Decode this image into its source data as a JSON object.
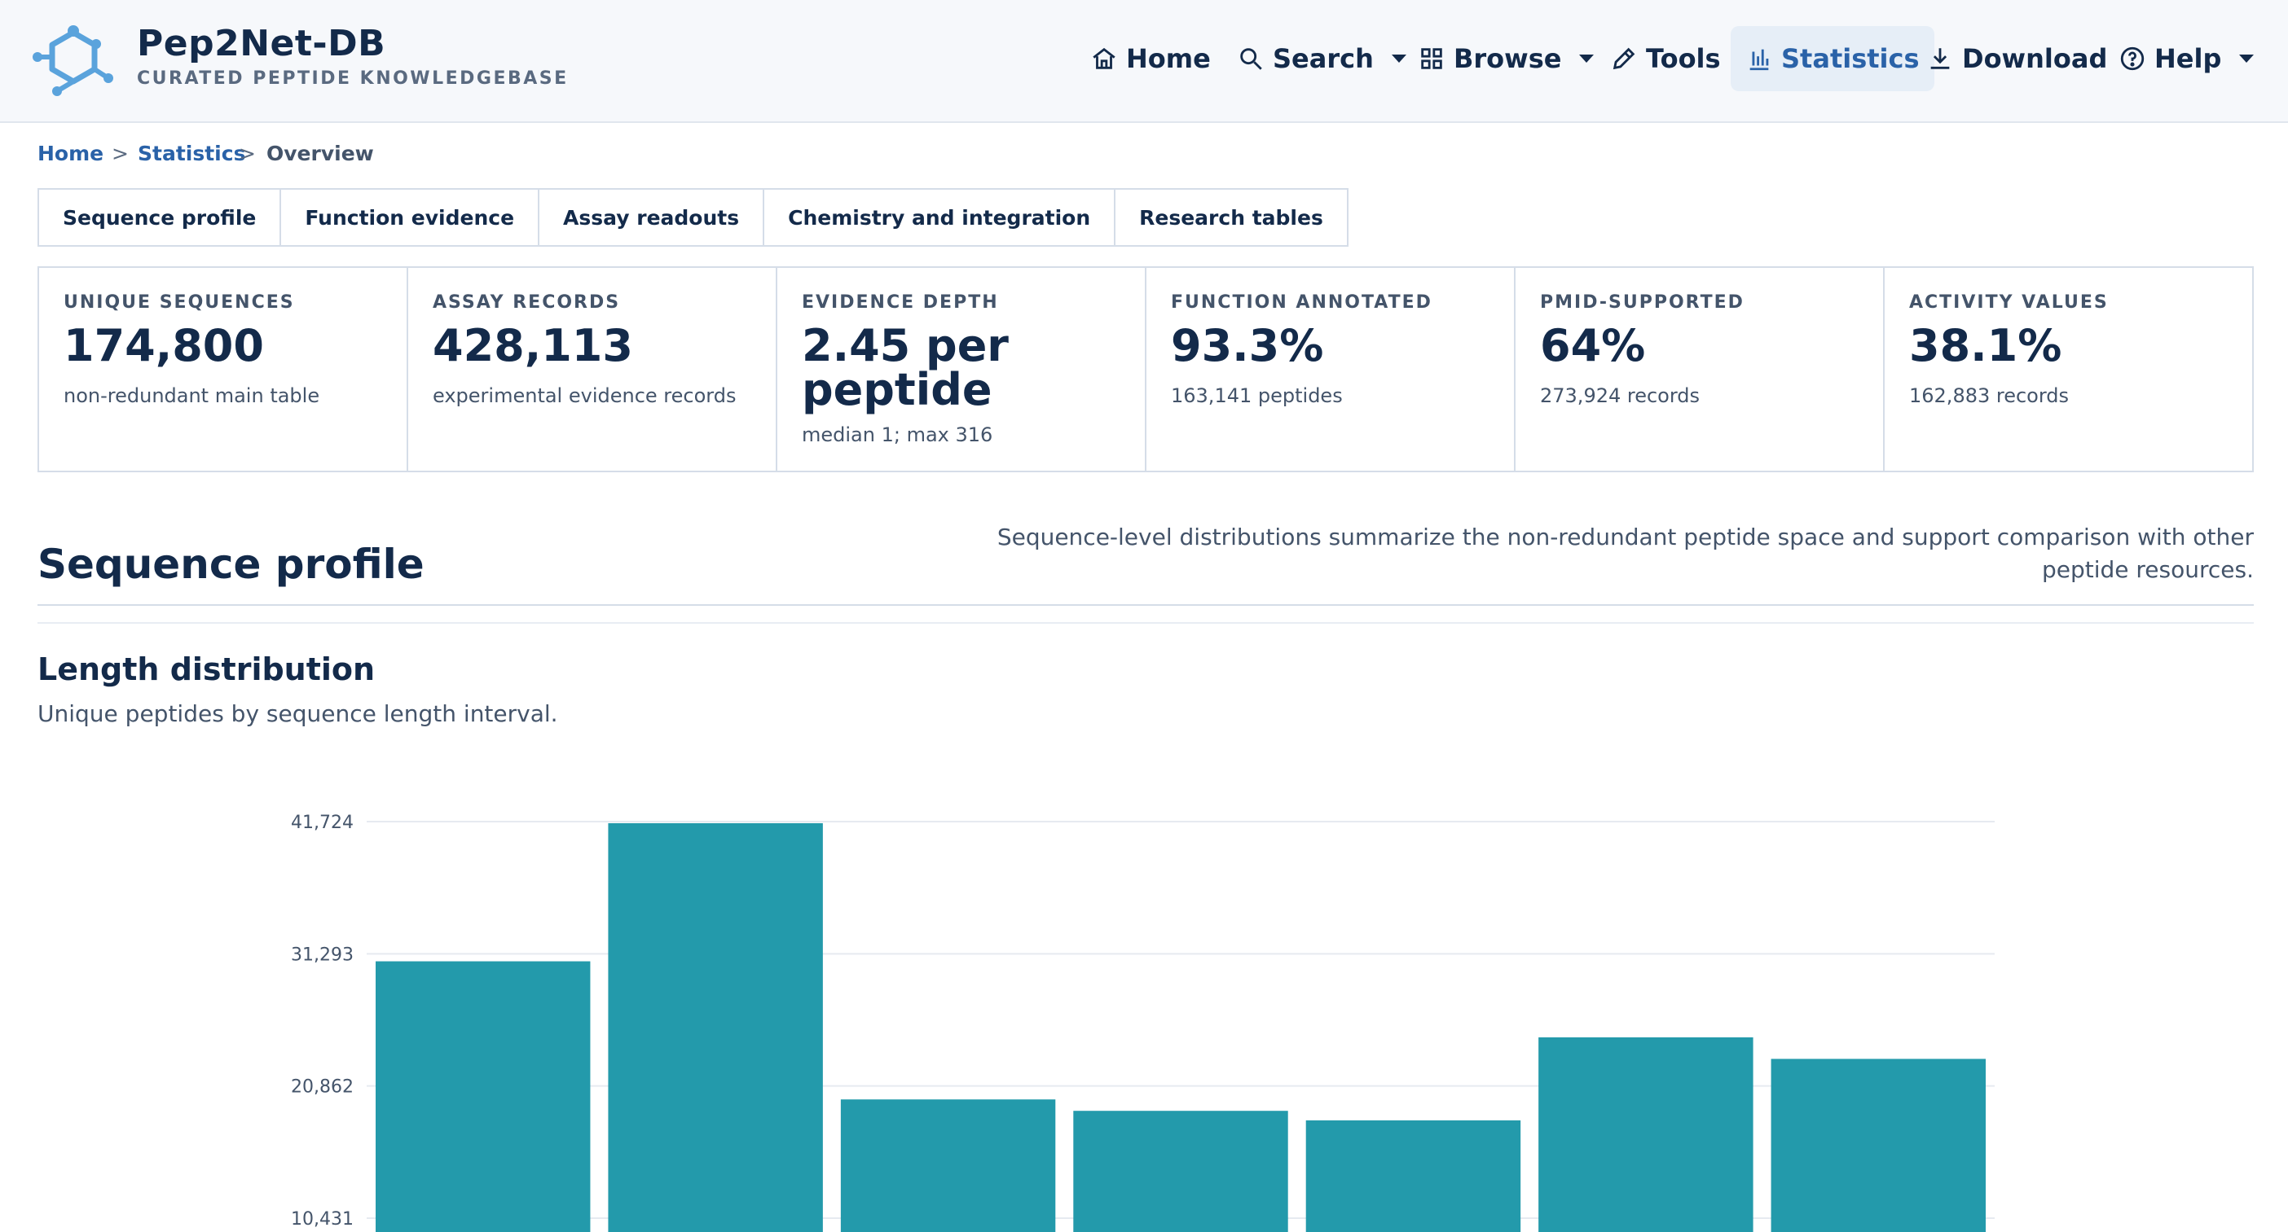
{
  "brand": {
    "title": "Pep2Net-DB",
    "subtitle": "CURATED PEPTIDE KNOWLEDGEBASE"
  },
  "nav": {
    "home": "Home",
    "search": "Search",
    "browse": "Browse",
    "tools": "Tools",
    "statistics": "Statistics",
    "download": "Download",
    "help": "Help",
    "active": "statistics"
  },
  "breadcrumb": {
    "home": "Home",
    "statistics": "Statistics",
    "current": "Overview",
    "separator": ">"
  },
  "tabs": [
    "Sequence profile",
    "Function evidence",
    "Assay readouts",
    "Chemistry and integration",
    "Research tables"
  ],
  "cards": [
    {
      "label": "UNIQUE SEQUENCES",
      "value": "174,800",
      "note": "non-redundant main table"
    },
    {
      "label": "ASSAY RECORDS",
      "value": "428,113",
      "note": "experimental evidence records"
    },
    {
      "label": "EVIDENCE DEPTH",
      "value": "2.45 per peptide",
      "note": "median 1; max 316"
    },
    {
      "label": "FUNCTION ANNOTATED",
      "value": "93.3%",
      "note": "163,141 peptides"
    },
    {
      "label": "PMID-SUPPORTED",
      "value": "64%",
      "note": "273,924 records"
    },
    {
      "label": "ACTIVITY VALUES",
      "value": "38.1%",
      "note": "162,883 records"
    }
  ],
  "section": {
    "title": "Sequence profile",
    "description": "Sequence-level distributions summarize the non-redundant peptide space and support comparison with other peptide resources."
  },
  "chart_section": {
    "title": "Length distribution",
    "subtitle": "Unique peptides by sequence length interval."
  },
  "colors": {
    "bar": "#239aab",
    "accent": "#2a62a8",
    "text": "#132a4a"
  },
  "chart_data": {
    "type": "bar",
    "values": [
      30700,
      41600,
      19800,
      18900,
      18150,
      24700,
      23000
    ],
    "y_ticks": [
      "10,431",
      "20,862",
      "31,293",
      "41,724"
    ],
    "y_tick_values": [
      10431,
      20862,
      31293,
      41724
    ],
    "ylim_visible": [
      8900,
      41724
    ],
    "grid": true
  }
}
